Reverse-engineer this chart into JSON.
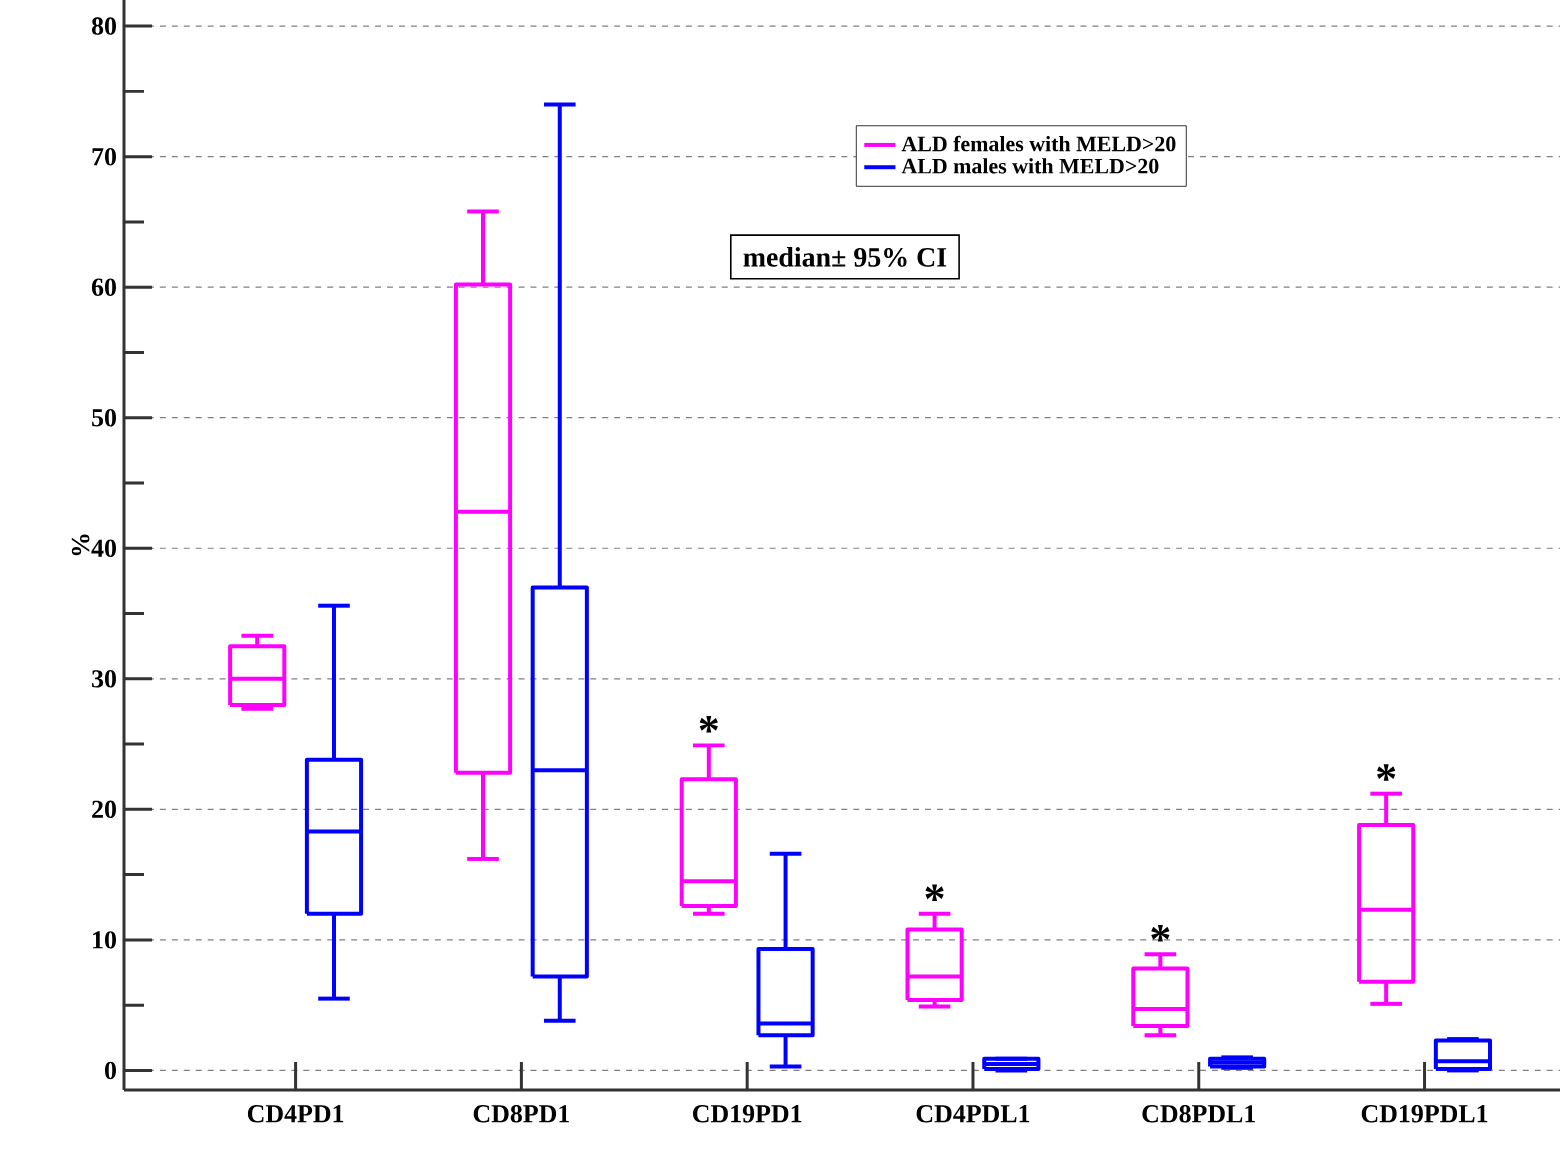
{
  "chart_data": {
    "type": "box",
    "ylabel": "%",
    "categories": [
      "CD4PD1",
      "CD8PD1",
      "CD19PD1",
      "CD4PDL1",
      "CD8PDL1",
      "CD19PDL1"
    ],
    "series": [
      {
        "name": "ALD females with MELD>20",
        "color": "#ff00ff",
        "boxes": [
          {
            "low": 27.7,
            "q1": 28,
            "median": 30,
            "q3": 32.5,
            "high": 33.3
          },
          {
            "low": 16.2,
            "q1": 22.8,
            "median": 42.8,
            "q3": 60.2,
            "high": 65.8
          },
          {
            "low": 12,
            "q1": 12.6,
            "median": 14.5,
            "q3": 22.3,
            "high": 24.9
          },
          {
            "low": 4.9,
            "q1": 5.4,
            "median": 7.2,
            "q3": 10.8,
            "high": 12
          },
          {
            "low": 2.7,
            "q1": 3.4,
            "median": 4.7,
            "q3": 7.8,
            "high": 8.9
          },
          {
            "low": 5.1,
            "q1": 6.8,
            "median": 12.3,
            "q3": 18.8,
            "high": 21.2
          }
        ]
      },
      {
        "name": "ALD males with MELD>20",
        "color": "#0000ff",
        "boxes": [
          {
            "low": 5.5,
            "q1": 12,
            "median": 18.3,
            "q3": 23.8,
            "high": 35.6
          },
          {
            "low": 3.8,
            "q1": 7.2,
            "median": 23,
            "q3": 37,
            "high": 74
          },
          {
            "low": 0.3,
            "q1": 2.7,
            "median": 3.6,
            "q3": 9.3,
            "high": 16.6
          },
          {
            "low": 0,
            "q1": 0.1,
            "median": 0.5,
            "q3": 0.9,
            "high": 0.9
          },
          {
            "low": 0.2,
            "q1": 0.3,
            "median": 0.6,
            "q3": 0.9,
            "high": 1
          },
          {
            "low": 0,
            "q1": 0.1,
            "median": 0.7,
            "q3": 2.3,
            "high": 2.4
          }
        ]
      }
    ],
    "ylim": [
      -1.5,
      82
    ],
    "yticks": [
      0,
      {
        "value": 5,
        "label": null
      },
      10,
      {
        "value": 15,
        "label": null
      },
      20,
      {
        "value": 25,
        "label": null
      },
      30,
      {
        "value": 35,
        "label": null
      },
      40,
      {
        "value": 45,
        "label": null
      },
      50,
      {
        "value": 55,
        "label": null
      },
      60,
      {
        "value": 65,
        "label": null
      },
      70,
      {
        "value": 75,
        "label": null
      },
      80
    ],
    "grid": "y",
    "legend": "top right",
    "annotations": [
      "median± 95% CI",
      "*",
      "*",
      "*",
      "*"
    ]
  }
}
